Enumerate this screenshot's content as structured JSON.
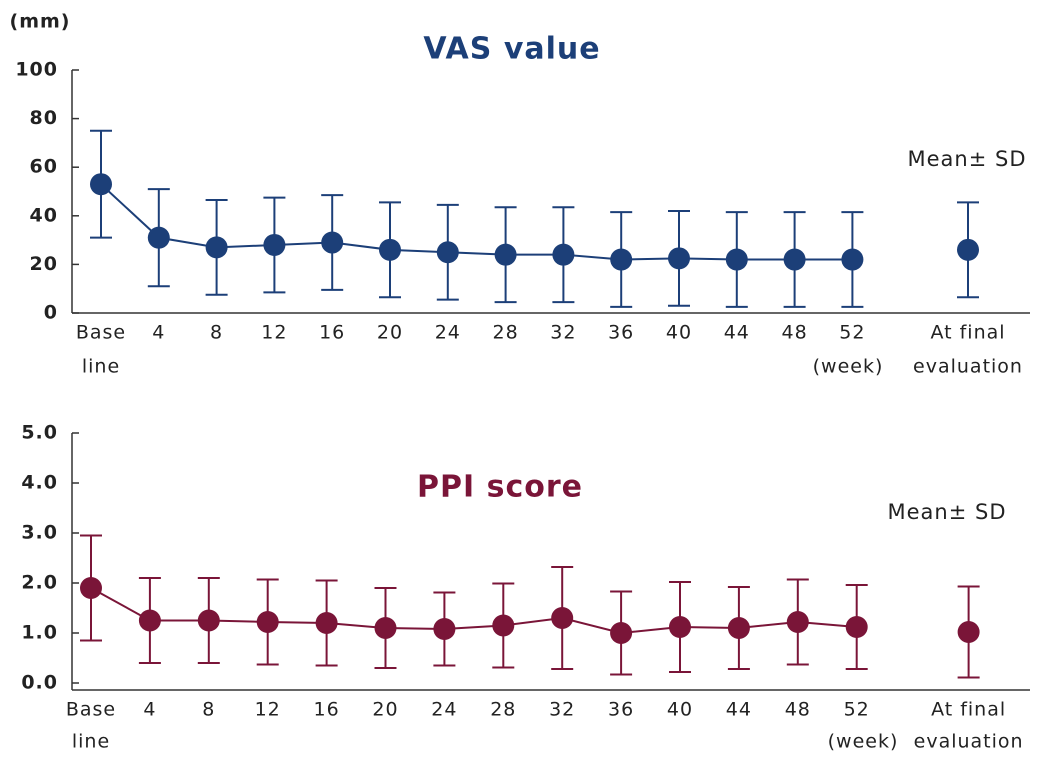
{
  "chart_data": [
    {
      "type": "errorbar-line",
      "title": "VAS value",
      "y_unit": "(mm)",
      "annotation": "Mean± SD",
      "x_unit": "(week)",
      "color": "#1c3f78",
      "categories": [
        [
          "Base",
          "line"
        ],
        [
          "4"
        ],
        [
          "8"
        ],
        [
          "12"
        ],
        [
          "16"
        ],
        [
          "20"
        ],
        [
          "24"
        ],
        [
          "28"
        ],
        [
          "32"
        ],
        [
          "36"
        ],
        [
          "40"
        ],
        [
          "44"
        ],
        [
          "48"
        ],
        [
          "52"
        ]
      ],
      "values": [
        53,
        31,
        27,
        28,
        29,
        26,
        25,
        24,
        24,
        22,
        22.5,
        22,
        22,
        22
      ],
      "errors": [
        22,
        20,
        19.5,
        19.5,
        19.5,
        19.5,
        19.5,
        19.5,
        19.5,
        19.5,
        19.5,
        19.5,
        19.5,
        19.5
      ],
      "final": {
        "category": [
          "At final",
          "evaluation"
        ],
        "value": 26,
        "error": 19.5
      },
      "ylim": [
        0,
        100
      ],
      "yticks": [
        0,
        20,
        40,
        60,
        80,
        100
      ]
    },
    {
      "type": "errorbar-line",
      "title": "PPI score",
      "annotation": "Mean± SD",
      "x_unit": "(week)",
      "color": "#7a1538",
      "categories": [
        [
          "Base",
          "line"
        ],
        [
          "4"
        ],
        [
          "8"
        ],
        [
          "12"
        ],
        [
          "16"
        ],
        [
          "20"
        ],
        [
          "24"
        ],
        [
          "28"
        ],
        [
          "32"
        ],
        [
          "36"
        ],
        [
          "40"
        ],
        [
          "44"
        ],
        [
          "48"
        ],
        [
          "52"
        ]
      ],
      "values": [
        1.9,
        1.25,
        1.25,
        1.22,
        1.2,
        1.1,
        1.08,
        1.15,
        1.3,
        1.0,
        1.12,
        1.1,
        1.22,
        1.12
      ],
      "errors": [
        1.05,
        0.85,
        0.85,
        0.85,
        0.85,
        0.8,
        0.73,
        0.84,
        1.02,
        0.83,
        0.9,
        0.82,
        0.85,
        0.84
      ],
      "final": {
        "category": [
          "At final",
          "evaluation"
        ],
        "value": 1.02,
        "error": 0.91
      },
      "ylim": [
        0,
        5
      ],
      "yticks": [
        {
          "value": 0,
          "label": "0.0"
        },
        {
          "value": 1,
          "label": "1.0"
        },
        {
          "value": 2,
          "label": "2.0"
        },
        {
          "value": 3,
          "label": "3.0"
        },
        {
          "value": 4,
          "label": "4.0"
        },
        {
          "value": 5,
          "label": "5.0"
        }
      ]
    }
  ]
}
